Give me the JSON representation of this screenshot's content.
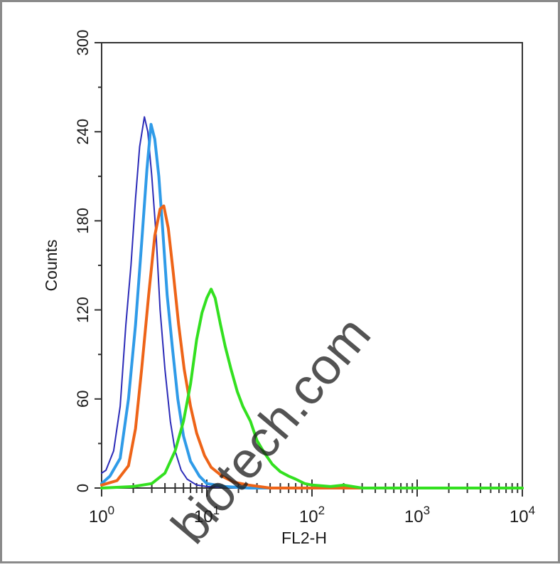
{
  "chart_data": {
    "type": "line",
    "title": "",
    "xlabel": "FL2-H",
    "ylabel": "Counts",
    "x_scale": "log",
    "xlim": [
      1,
      10000
    ],
    "ylim": [
      0,
      300
    ],
    "x_ticks": [
      {
        "base": "10",
        "exp": "0",
        "value": 1
      },
      {
        "base": "10",
        "exp": "1",
        "value": 10
      },
      {
        "base": "10",
        "exp": "2",
        "value": 100
      },
      {
        "base": "10",
        "exp": "3",
        "value": 1000
      },
      {
        "base": "10",
        "exp": "4",
        "value": 10000
      }
    ],
    "y_ticks": [
      "0",
      "60",
      "120",
      "180",
      "240",
      "300"
    ],
    "grid": false,
    "legend": "none",
    "series": [
      {
        "color": "#2b2bb8",
        "points": [
          [
            1.0,
            10
          ],
          [
            1.1,
            12
          ],
          [
            1.3,
            25
          ],
          [
            1.5,
            55
          ],
          [
            1.7,
            110
          ],
          [
            1.9,
            150
          ],
          [
            2.1,
            195
          ],
          [
            2.3,
            230
          ],
          [
            2.55,
            250
          ],
          [
            2.75,
            240
          ],
          [
            3.0,
            210
          ],
          [
            3.3,
            170
          ],
          [
            3.6,
            120
          ],
          [
            4.0,
            80
          ],
          [
            4.5,
            45
          ],
          [
            5.0,
            25
          ],
          [
            5.7,
            12
          ],
          [
            6.5,
            6
          ],
          [
            8,
            2
          ],
          [
            10,
            1
          ],
          [
            20,
            0
          ],
          [
            10000,
            0
          ]
        ]
      },
      {
        "color": "#2f9be8",
        "points": [
          [
            1.0,
            3
          ],
          [
            1.2,
            8
          ],
          [
            1.5,
            20
          ],
          [
            1.8,
            60
          ],
          [
            2.1,
            110
          ],
          [
            2.4,
            165
          ],
          [
            2.7,
            215
          ],
          [
            2.95,
            245
          ],
          [
            3.2,
            235
          ],
          [
            3.5,
            210
          ],
          [
            3.8,
            175
          ],
          [
            4.2,
            130
          ],
          [
            4.7,
            95
          ],
          [
            5.3,
            60
          ],
          [
            6.0,
            35
          ],
          [
            7.0,
            18
          ],
          [
            8.5,
            8
          ],
          [
            10,
            3
          ],
          [
            15,
            1
          ],
          [
            25,
            0
          ],
          [
            10000,
            0
          ]
        ]
      },
      {
        "color": "#ee6418",
        "points": [
          [
            1.0,
            2
          ],
          [
            1.4,
            5
          ],
          [
            1.8,
            15
          ],
          [
            2.1,
            40
          ],
          [
            2.4,
            80
          ],
          [
            2.8,
            130
          ],
          [
            3.2,
            170
          ],
          [
            3.6,
            188
          ],
          [
            3.9,
            190
          ],
          [
            4.3,
            175
          ],
          [
            4.8,
            145
          ],
          [
            5.4,
            110
          ],
          [
            6.1,
            80
          ],
          [
            7.0,
            55
          ],
          [
            8.0,
            37
          ],
          [
            9.5,
            22
          ],
          [
            11,
            14
          ],
          [
            14,
            8
          ],
          [
            18,
            4
          ],
          [
            25,
            2
          ],
          [
            40,
            0
          ],
          [
            10000,
            0
          ]
        ]
      },
      {
        "color": "#33e020",
        "points": [
          [
            1.0,
            0
          ],
          [
            2,
            1
          ],
          [
            3,
            3
          ],
          [
            4,
            10
          ],
          [
            5,
            25
          ],
          [
            6,
            45
          ],
          [
            7,
            70
          ],
          [
            8,
            100
          ],
          [
            9,
            118
          ],
          [
            10,
            128
          ],
          [
            11,
            134
          ],
          [
            12,
            128
          ],
          [
            13.5,
            110
          ],
          [
            15,
            95
          ],
          [
            17,
            80
          ],
          [
            19.5,
            65
          ],
          [
            22,
            55
          ],
          [
            26,
            45
          ],
          [
            30,
            32
          ],
          [
            35,
            24
          ],
          [
            42,
            16
          ],
          [
            50,
            11
          ],
          [
            60,
            8
          ],
          [
            70,
            6
          ],
          [
            85,
            3
          ],
          [
            100,
            2
          ],
          [
            150,
            1
          ],
          [
            200,
            2
          ],
          [
            300,
            0
          ],
          [
            10000,
            0
          ]
        ]
      }
    ]
  },
  "watermark": {
    "text": "biotech.com",
    "color": "#8ec4f0"
  }
}
